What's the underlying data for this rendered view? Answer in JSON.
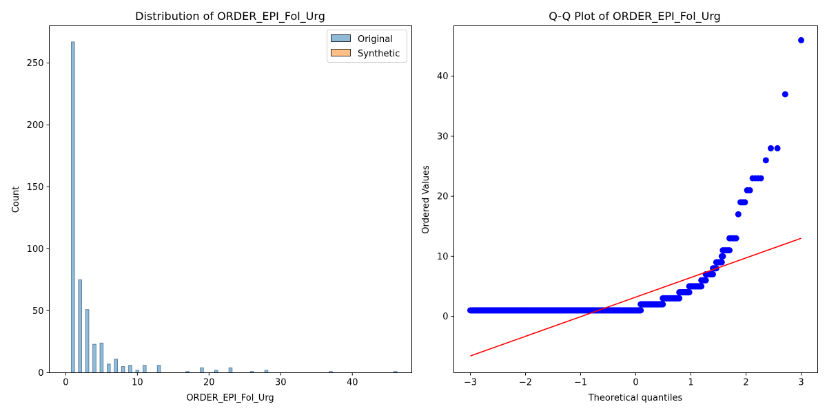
{
  "chart_data": [
    {
      "type": "bar",
      "title": "Distribution of ORDER_EPI_Fol_Urg",
      "xlabel": "ORDER_EPI_Fol_Urg",
      "ylabel": "Count",
      "xlim": [
        -2.3,
        48.3
      ],
      "ylim": [
        0,
        280
      ],
      "xticks": [
        0,
        10,
        20,
        30,
        40
      ],
      "yticks": [
        0,
        50,
        100,
        150,
        200,
        250
      ],
      "bin_width": 0.45,
      "legend_position": "top-right",
      "grid": false,
      "series": [
        {
          "name": "Original",
          "color": "#1f77b4",
          "alpha": 0.5,
          "bins": [
            {
              "x": 1,
              "value": 267
            },
            {
              "x": 2,
              "value": 75
            },
            {
              "x": 3,
              "value": 51
            },
            {
              "x": 4,
              "value": 23
            },
            {
              "x": 5,
              "value": 24
            },
            {
              "x": 6,
              "value": 7
            },
            {
              "x": 7,
              "value": 11
            },
            {
              "x": 8,
              "value": 5
            },
            {
              "x": 9,
              "value": 6
            },
            {
              "x": 10,
              "value": 2
            },
            {
              "x": 11,
              "value": 6
            },
            {
              "x": 13,
              "value": 6
            },
            {
              "x": 17,
              "value": 1
            },
            {
              "x": 19,
              "value": 4
            },
            {
              "x": 21,
              "value": 2
            },
            {
              "x": 23,
              "value": 4
            },
            {
              "x": 26,
              "value": 1
            },
            {
              "x": 28,
              "value": 2
            },
            {
              "x": 37,
              "value": 1
            },
            {
              "x": 46,
              "value": 1
            }
          ]
        },
        {
          "name": "Synthetic",
          "color": "#ff7f0e",
          "alpha": 0.5,
          "bins": []
        }
      ]
    },
    {
      "type": "scatter",
      "title": "Q-Q Plot of ORDER_EPI_Fol_Urg",
      "xlabel": "Theoretical quantiles",
      "ylabel": "Ordered Values",
      "xlim": [
        -3.3,
        3.3
      ],
      "ylim": [
        -9.4,
        48.4
      ],
      "xticks": [
        -3,
        -2,
        -1,
        0,
        1,
        2,
        3
      ],
      "yticks": [
        0,
        10,
        20,
        30,
        40
      ],
      "grid": false,
      "point_color": "#0000ff",
      "line_color": "#ff0000",
      "fit_line": {
        "x": [
          -3.0,
          3.0
        ],
        "y": [
          -6.6,
          13.0
        ]
      },
      "points": [
        {
          "x_start": -3.0,
          "x_end": 0.09,
          "y": 1,
          "repeat": 267
        },
        {
          "x_start": 0.09,
          "x_end": 0.49,
          "y": 2,
          "repeat": 75
        },
        {
          "x_start": 0.49,
          "x_end": 0.79,
          "y": 3,
          "repeat": 51
        },
        {
          "x_start": 0.79,
          "x_end": 0.97,
          "y": 4,
          "repeat": 23
        },
        {
          "x_start": 0.97,
          "x_end": 1.19,
          "y": 5,
          "repeat": 24
        },
        {
          "x_start": 1.19,
          "x_end": 1.27,
          "y": 6,
          "repeat": 7
        },
        {
          "x_start": 1.27,
          "x_end": 1.4,
          "y": 7,
          "repeat": 11
        },
        {
          "x_start": 1.4,
          "x_end": 1.46,
          "y": 8,
          "repeat": 5
        },
        {
          "x_start": 1.46,
          "x_end": 1.56,
          "y": 9,
          "repeat": 6
        },
        {
          "x_start": 1.56,
          "x_end": 1.58,
          "y": 10,
          "repeat": 2
        },
        {
          "x_start": 1.58,
          "x_end": 1.7,
          "y": 11,
          "repeat": 6
        },
        {
          "x_start": 1.7,
          "x_end": 1.82,
          "y": 13,
          "repeat": 6
        },
        {
          "x_start": 1.86,
          "x_end": 1.86,
          "y": 17,
          "repeat": 1
        },
        {
          "x_start": 1.9,
          "x_end": 1.98,
          "y": 19,
          "repeat": 4
        },
        {
          "x_start": 2.02,
          "x_end": 2.07,
          "y": 21,
          "repeat": 2
        },
        {
          "x_start": 2.12,
          "x_end": 2.27,
          "y": 23,
          "repeat": 4
        },
        {
          "x_start": 2.36,
          "x_end": 2.36,
          "y": 26,
          "repeat": 1
        },
        {
          "x_start": 2.45,
          "x_end": 2.57,
          "y": 28,
          "repeat": 2
        },
        {
          "x_start": 2.71,
          "x_end": 2.71,
          "y": 37,
          "repeat": 1
        },
        {
          "x_start": 3.0,
          "x_end": 3.0,
          "y": 46,
          "repeat": 1
        }
      ]
    }
  ]
}
